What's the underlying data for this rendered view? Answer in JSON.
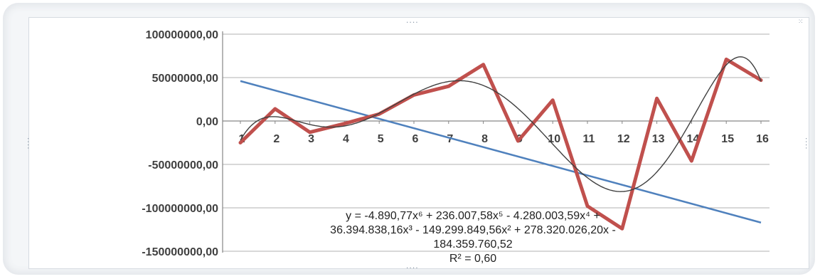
{
  "colors": {
    "data_series": "#c0504d",
    "linear_trend": "#4f81bd",
    "poly_trend": "#404040",
    "axis": "#868686",
    "gridline": "#b0b0b0",
    "tick_text": "#404040"
  },
  "chart_data": {
    "type": "line",
    "x": [
      1,
      2,
      3,
      4,
      5,
      6,
      7,
      8,
      9,
      10,
      11,
      12,
      13,
      14,
      15,
      16
    ],
    "categories": [
      "1",
      "2",
      "3",
      "4",
      "5",
      "6",
      "7",
      "8",
      "9",
      "10",
      "11",
      "12",
      "13",
      "14",
      "15",
      "16"
    ],
    "series": [
      {
        "values": [
          -25000000,
          14000000,
          -13000000,
          -3000000,
          8000000,
          30000000,
          40000000,
          65000000,
          -23000000,
          24000000,
          -98000000,
          -124000000,
          26000000,
          -46000000,
          71000000,
          47000000
        ]
      }
    ],
    "trendlines": [
      {
        "type": "linear",
        "start": [
          1,
          46000000
        ],
        "end": [
          16,
          -117000000
        ]
      },
      {
        "type": "polynomial",
        "order": 6
      }
    ],
    "yticks": [
      {
        "value": 100000000,
        "label": "100000000,00"
      },
      {
        "value": 50000000,
        "label": "50000000,00"
      },
      {
        "value": 0,
        "label": "0,00"
      },
      {
        "value": -50000000,
        "label": "-50000000,00"
      },
      {
        "value": -100000000,
        "label": "-100000000,00"
      },
      {
        "value": -150000000,
        "label": "-150000000,00"
      }
    ],
    "ylim": [
      -150000000,
      100000000
    ],
    "xlim": [
      1,
      16
    ],
    "grid": true,
    "equation_lines": [
      "y = -4.890,77x⁶ + 236.007,58x⁵ - 4.280.003,59x⁴ +",
      "36.394.838,16x³ - 149.299.849,56x² + 278.320.026,20x -",
      "184.359.760,52",
      "R² = 0,60"
    ],
    "xlabel": "",
    "ylabel": "",
    "title": ""
  }
}
